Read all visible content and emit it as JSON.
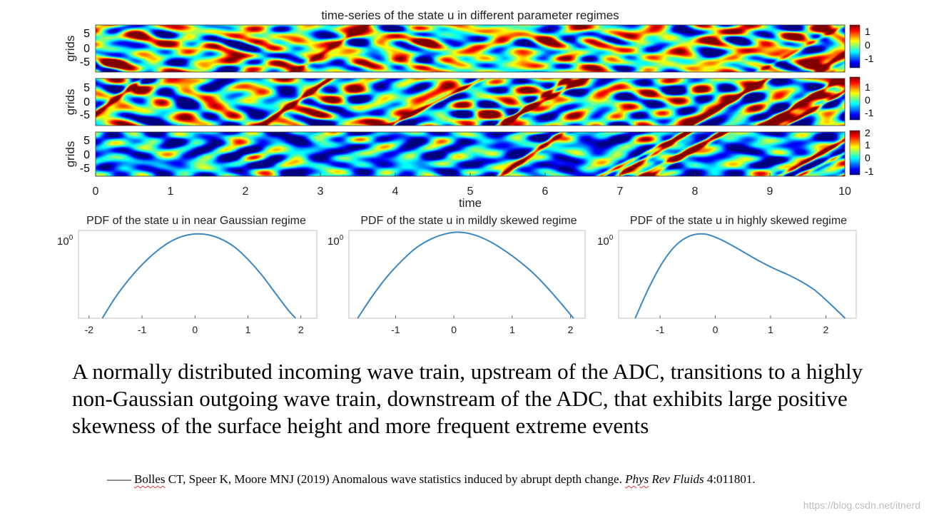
{
  "chart_data": [
    {
      "type": "heatmap",
      "title": "time-series of the state u in different parameter regimes",
      "xlabel": "time",
      "ylabel": "grids",
      "x_ticks": [
        "0",
        "1",
        "2",
        "3",
        "4",
        "5",
        "6",
        "7",
        "8",
        "9",
        "10"
      ],
      "xlim": [
        0,
        10
      ],
      "panels": [
        {
          "name": "near-gaussian",
          "y_ticks": [
            "5",
            "0",
            "-5"
          ],
          "colorbar_ticks": [
            "1",
            "0",
            "-1"
          ],
          "clim": [
            -1.3,
            1.3
          ],
          "skew": 0.0
        },
        {
          "name": "mildly-skewed",
          "y_ticks": [
            "5",
            "0",
            "-5"
          ],
          "colorbar_ticks": [
            "1",
            "0",
            "-1"
          ],
          "clim": [
            -1.3,
            1.3
          ],
          "skew": 0.5
        },
        {
          "name": "highly-skewed",
          "y_ticks": [
            "5",
            "0",
            "-5"
          ],
          "colorbar_ticks": [
            "2",
            "1",
            "0",
            "-1"
          ],
          "clim": [
            -1.4,
            2.4
          ],
          "skew": 1.0
        }
      ]
    },
    {
      "type": "line",
      "title": "PDF of the state u in near Gaussian regime",
      "y_tick": "10",
      "y_tick_exp": "0",
      "x_ticks": [
        -2,
        -1,
        0,
        1,
        2
      ],
      "xlim": [
        -2.2,
        2.3
      ],
      "x": [
        -1.75,
        -1.5,
        -1.25,
        -1.0,
        -0.75,
        -0.5,
        -0.25,
        0.0,
        0.25,
        0.5,
        0.75,
        1.0,
        1.25,
        1.5,
        1.75,
        1.9
      ],
      "y": [
        0.0,
        0.24,
        0.44,
        0.61,
        0.75,
        0.86,
        0.93,
        0.96,
        0.95,
        0.9,
        0.81,
        0.67,
        0.5,
        0.3,
        0.1,
        0.0
      ]
    },
    {
      "type": "line",
      "title": "PDF of the state u in mildly skewed regime",
      "y_tick": "10",
      "y_tick_exp": "0",
      "x_ticks": [
        -1,
        0,
        1,
        2
      ],
      "xlim": [
        -1.8,
        2.25
      ],
      "x": [
        -1.65,
        -1.4,
        -1.15,
        -0.9,
        -0.65,
        -0.4,
        -0.15,
        0.1,
        0.35,
        0.6,
        0.85,
        1.1,
        1.35,
        1.6,
        1.85,
        2.05
      ],
      "y": [
        0.0,
        0.25,
        0.47,
        0.65,
        0.8,
        0.9,
        0.96,
        0.98,
        0.95,
        0.88,
        0.78,
        0.66,
        0.52,
        0.35,
        0.16,
        0.0
      ]
    },
    {
      "type": "line",
      "title": "PDF of the state u in highly skewed regime",
      "y_tick": "10",
      "y_tick_exp": "0",
      "x_ticks": [
        -1,
        0,
        1,
        2
      ],
      "xlim": [
        -1.75,
        2.55
      ],
      "x": [
        -1.45,
        -1.2,
        -0.95,
        -0.7,
        -0.45,
        -0.2,
        0.05,
        0.3,
        0.55,
        0.8,
        1.05,
        1.3,
        1.55,
        1.8,
        2.05,
        2.35
      ],
      "y": [
        0.0,
        0.35,
        0.64,
        0.84,
        0.94,
        0.96,
        0.91,
        0.83,
        0.74,
        0.65,
        0.57,
        0.5,
        0.42,
        0.32,
        0.18,
        0.0
      ]
    }
  ],
  "caption": "A normally distributed incoming wave train, upstream of the ADC, transitions to a highly non-Gaussian outgoing wave train, downstream of the ADC, that exhibits large positive skewness of the surface height and more frequent extreme events",
  "citation": {
    "dash": "——",
    "author": "Bolles",
    "authors_rest": " CT, Speer K, Moore MNJ (2019) Anomalous wave statistics induced by abrupt depth change. ",
    "journal_part1": "Phys",
    "journal_part2": " Rev ",
    "journal_part3": "Fluids",
    "ref": " 4:011801."
  },
  "watermark": "https://blog.csdn.net/itnerd"
}
